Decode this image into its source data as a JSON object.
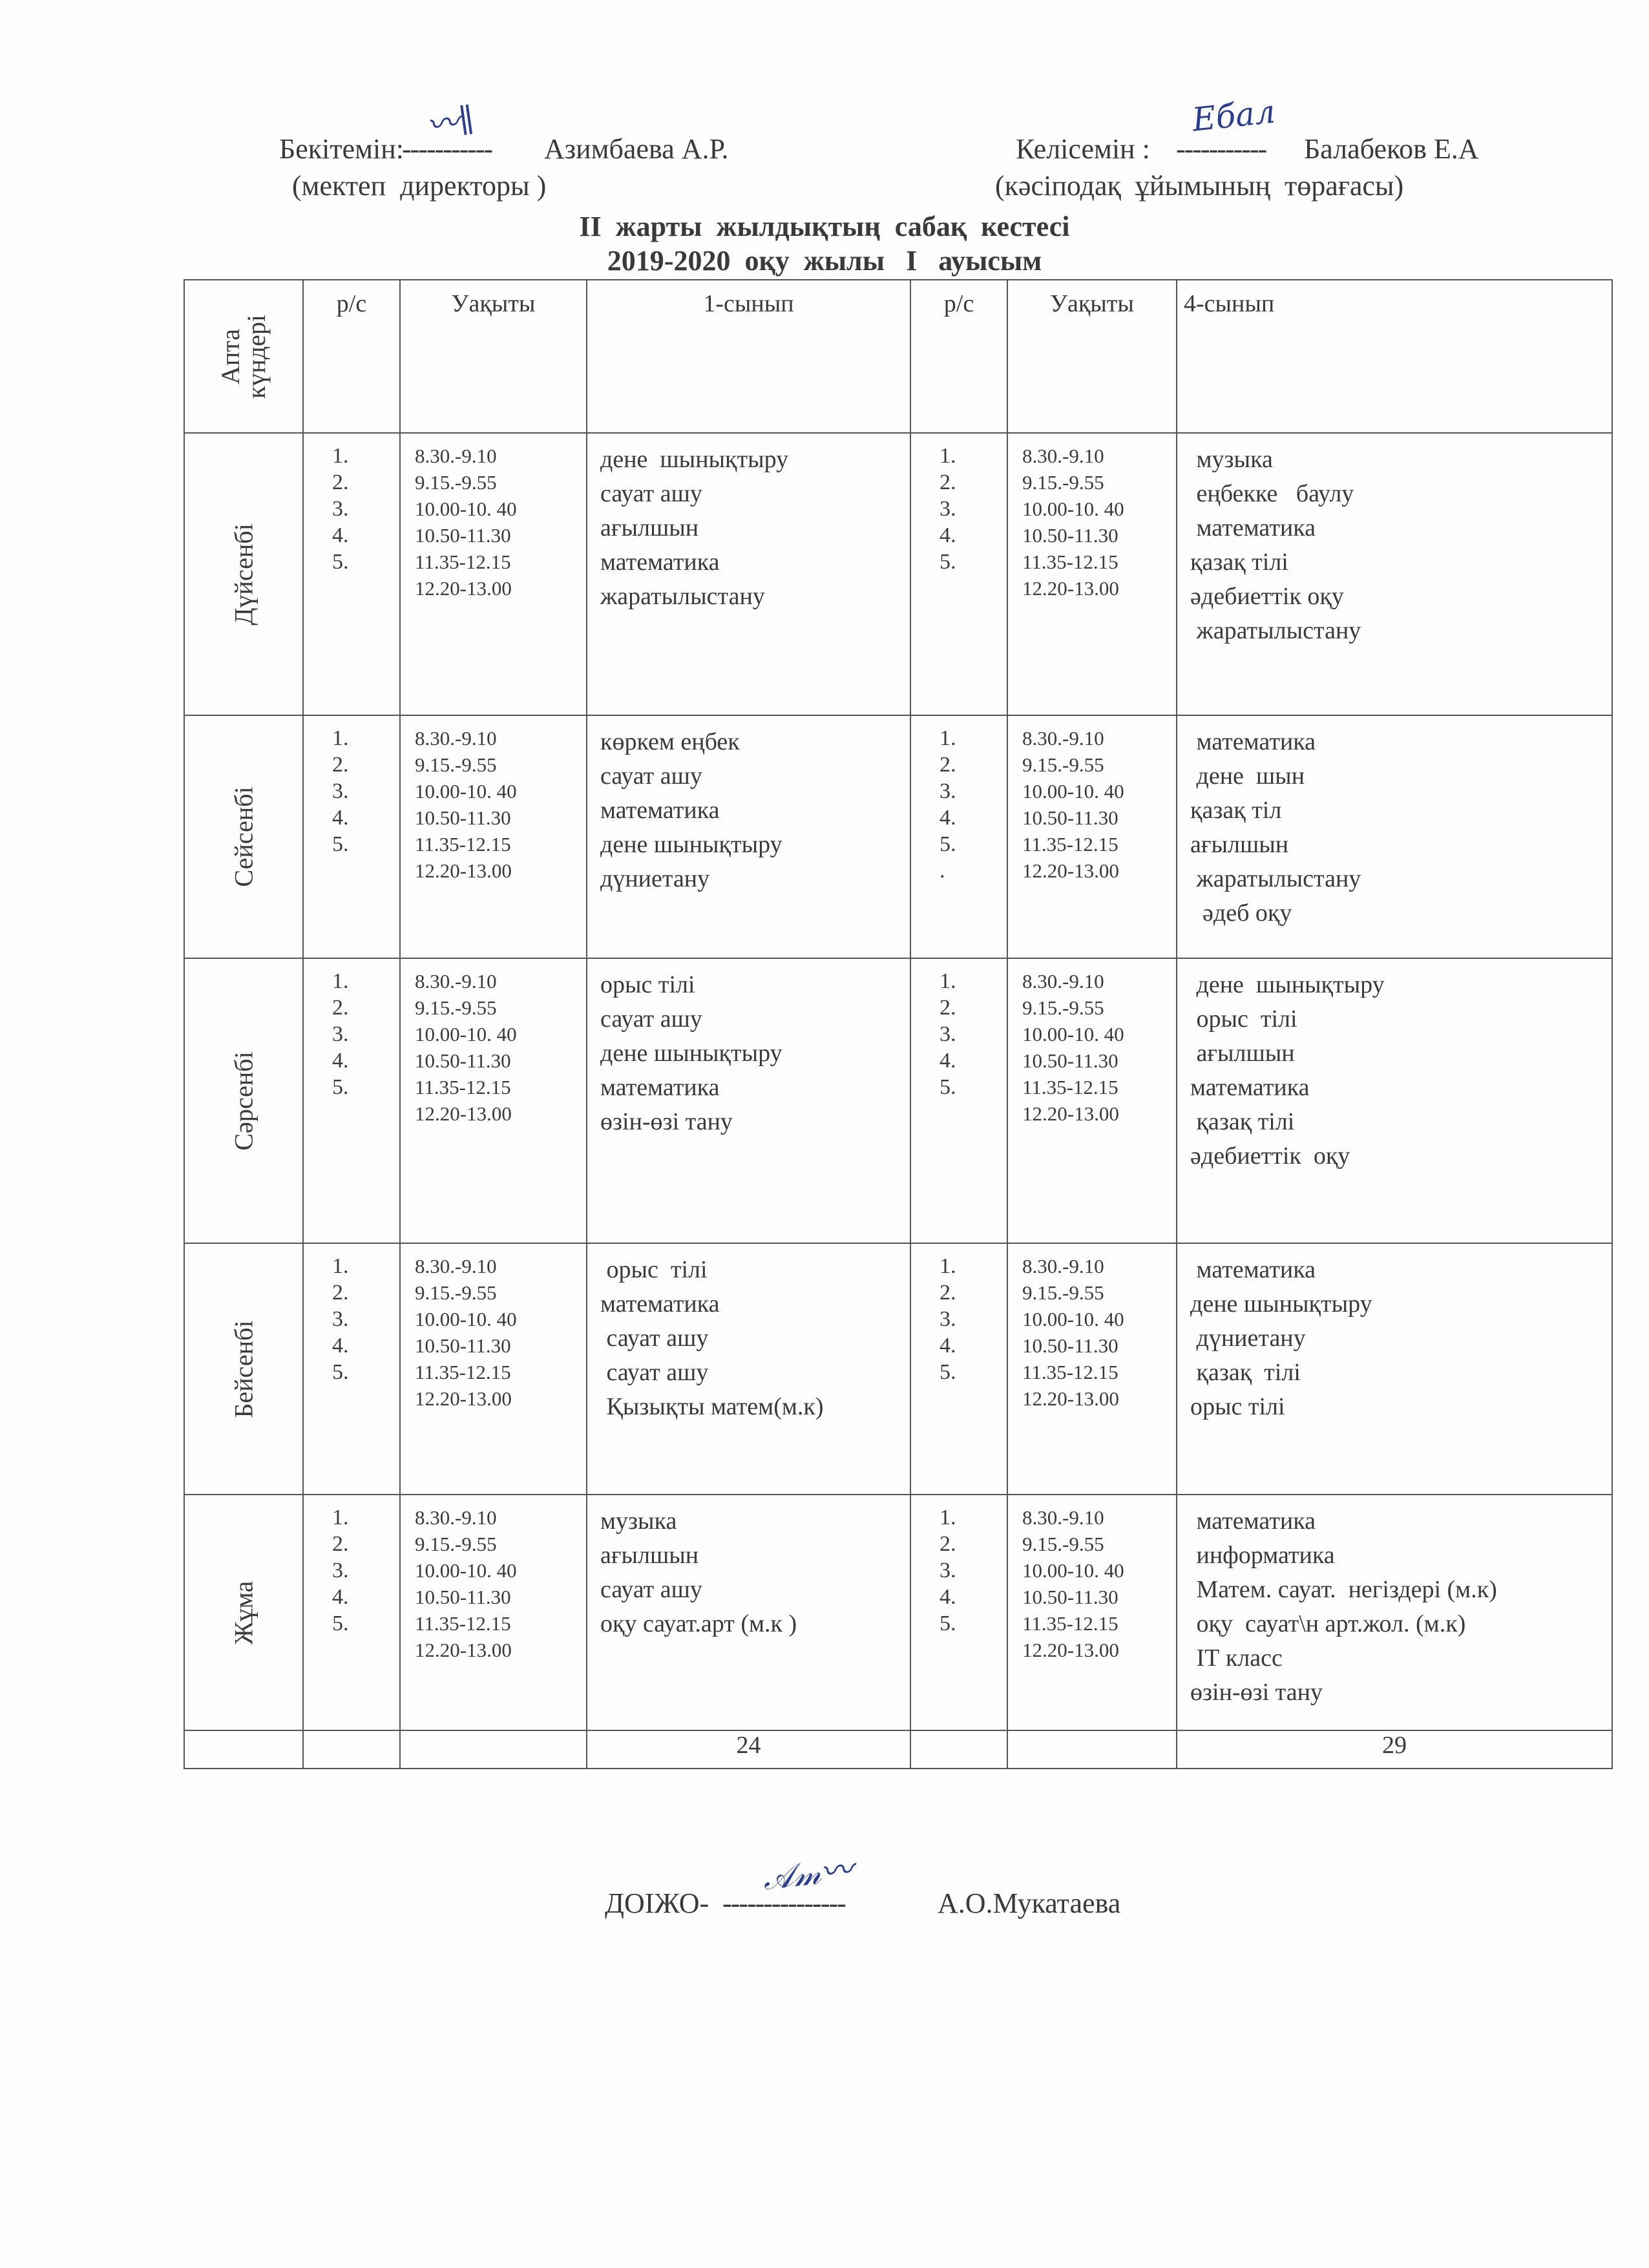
{
  "header": {
    "approve_label": "Бекітемін:",
    "approve_dots": "-----------",
    "approve_name": "Азимбаева А.Р.",
    "approve_role": "(мектеп  директоры )",
    "approve_signature": "Азимб",
    "agree_label": "Келісемін :",
    "agree_dots": "-----------",
    "agree_name": "Балабеков Е.А",
    "agree_role": "(кәсіподақ  ұйымының  төрағасы)",
    "agree_signature": "Ебал"
  },
  "title": {
    "line1": "ІІ  жарты  жылдықтың  сабақ  кестесі",
    "line2": "2019-2020  оқу  жылы   І   ауысым"
  },
  "table": {
    "headers": {
      "day": "Апта күндері",
      "num1": "р/с",
      "time1": "Уақыты",
      "class1": "1-сынып",
      "num2": "р/с",
      "time2": "Уақыты",
      "class2": "4-сынып"
    },
    "days": [
      {
        "name": "Дүйсенбі",
        "nums1": [
          "1.",
          "2.",
          "3.",
          "4.",
          "5."
        ],
        "times1": [
          "8.30.-9.10",
          "9.15.-9.55",
          "10.00-10. 40",
          "10.50-11.30",
          "11.35-12.15",
          "12.20-13.00"
        ],
        "class1": [
          "дене  шынықтыру",
          "сауат ашу",
          "ағылшын",
          "математика",
          "жаратылыстану"
        ],
        "nums2": [
          "1.",
          "2.",
          "3.",
          "4.",
          "5."
        ],
        "times2": [
          "8.30.-9.10",
          "9.15.-9.55",
          "10.00-10. 40",
          "10.50-11.30",
          "11.35-12.15",
          "12.20-13.00"
        ],
        "class2": [
          " музыка",
          " еңбекке   баулу",
          " математика",
          "қазақ тілі",
          "әдебиеттік оқу",
          " жаратылыстану"
        ]
      },
      {
        "name": "Сейсенбі",
        "nums1": [
          "1.",
          "2.",
          "3.",
          "4.",
          "5."
        ],
        "times1": [
          "8.30.-9.10",
          "9.15.-9.55",
          "10.00-10. 40",
          "10.50-11.30",
          "11.35-12.15",
          "12.20-13.00"
        ],
        "class1": [
          "көркем еңбек",
          "сауат ашу",
          "математика",
          "дене шынықтыру",
          "дүниетану"
        ],
        "nums2": [
          "1.",
          "2.",
          "3.",
          "4.",
          "5.",
          "."
        ],
        "times2": [
          "8.30.-9.10",
          "9.15.-9.55",
          "10.00-10. 40",
          "10.50-11.30",
          "11.35-12.15",
          "12.20-13.00"
        ],
        "class2": [
          " математика",
          " дене  шын",
          "қазақ тіл",
          "ағылшын",
          " жаратылыстану",
          "  әдеб оқу"
        ]
      },
      {
        "name": "Сәрсенбі",
        "nums1": [
          "1.",
          "2.",
          "3.",
          "4.",
          "5."
        ],
        "times1": [
          "8.30.-9.10",
          "9.15.-9.55",
          "10.00-10. 40",
          "10.50-11.30",
          "11.35-12.15",
          "12.20-13.00"
        ],
        "class1": [
          "орыс тілі",
          "сауат ашу",
          "дене шынықтыру",
          "математика",
          "өзін-өзі тану"
        ],
        "nums2": [
          "1.",
          "2.",
          "3.",
          "4.",
          "5."
        ],
        "times2": [
          "8.30.-9.10",
          "9.15.-9.55",
          "10.00-10. 40",
          "10.50-11.30",
          "11.35-12.15",
          "12.20-13.00"
        ],
        "class2": [
          " дене  шынықтыру",
          " орыс  тілі",
          " ағылшын",
          "математика",
          " қазақ тілі",
          "әдебиеттік  оқу"
        ]
      },
      {
        "name": "Бейсенбі",
        "nums1": [
          "1.",
          "2.",
          "3.",
          "4.",
          "5."
        ],
        "times1": [
          "8.30.-9.10",
          "9.15.-9.55",
          "10.00-10. 40",
          "10.50-11.30",
          "11.35-12.15",
          "12.20-13.00"
        ],
        "class1": [
          " орыс  тілі",
          "математика",
          " сауат ашу",
          " сауат ашу",
          " Қызықты матем(м.к)"
        ],
        "nums2": [
          "1.",
          "2.",
          "3.",
          "4.",
          "5."
        ],
        "times2": [
          "8.30.-9.10",
          "9.15.-9.55",
          "10.00-10. 40",
          "10.50-11.30",
          "11.35-12.15",
          "12.20-13.00"
        ],
        "class2": [
          " математика",
          "дене шынықтыру",
          " дүниетану",
          " қазақ  тілі",
          "орыс тілі"
        ]
      },
      {
        "name": "Жұма",
        "nums1": [
          "1.",
          "2.",
          "3.",
          "4.",
          "5."
        ],
        "times1": [
          "8.30.-9.10",
          "9.15.-9.55",
          "10.00-10. 40",
          "10.50-11.30",
          "11.35-12.15",
          "12.20-13.00"
        ],
        "class1": [
          "музыка",
          "ағылшын",
          "сауат ашу",
          "оқу сауат.арт (м.к )"
        ],
        "nums2": [
          "1.",
          "2.",
          "3.",
          "4.",
          "5."
        ],
        "times2": [
          "8.30.-9.10",
          "9.15.-9.55",
          "10.00-10. 40",
          "10.50-11.30",
          "11.35-12.15",
          "12.20-13.00"
        ],
        "class2": [
          " математика",
          " информатика",
          " Матем. сауат.  негіздері (м.к)",
          " оқу  сауат\\н арт.жол. (м.к)",
          " ІТ класс",
          "өзін-өзі тану"
        ]
      }
    ],
    "totals": {
      "class1": "24",
      "class2": "29"
    }
  },
  "footer": {
    "label": "ДОІЖО-",
    "dots": "---------------",
    "name": "А.О.Мукатаева",
    "signature": "АМукат"
  }
}
